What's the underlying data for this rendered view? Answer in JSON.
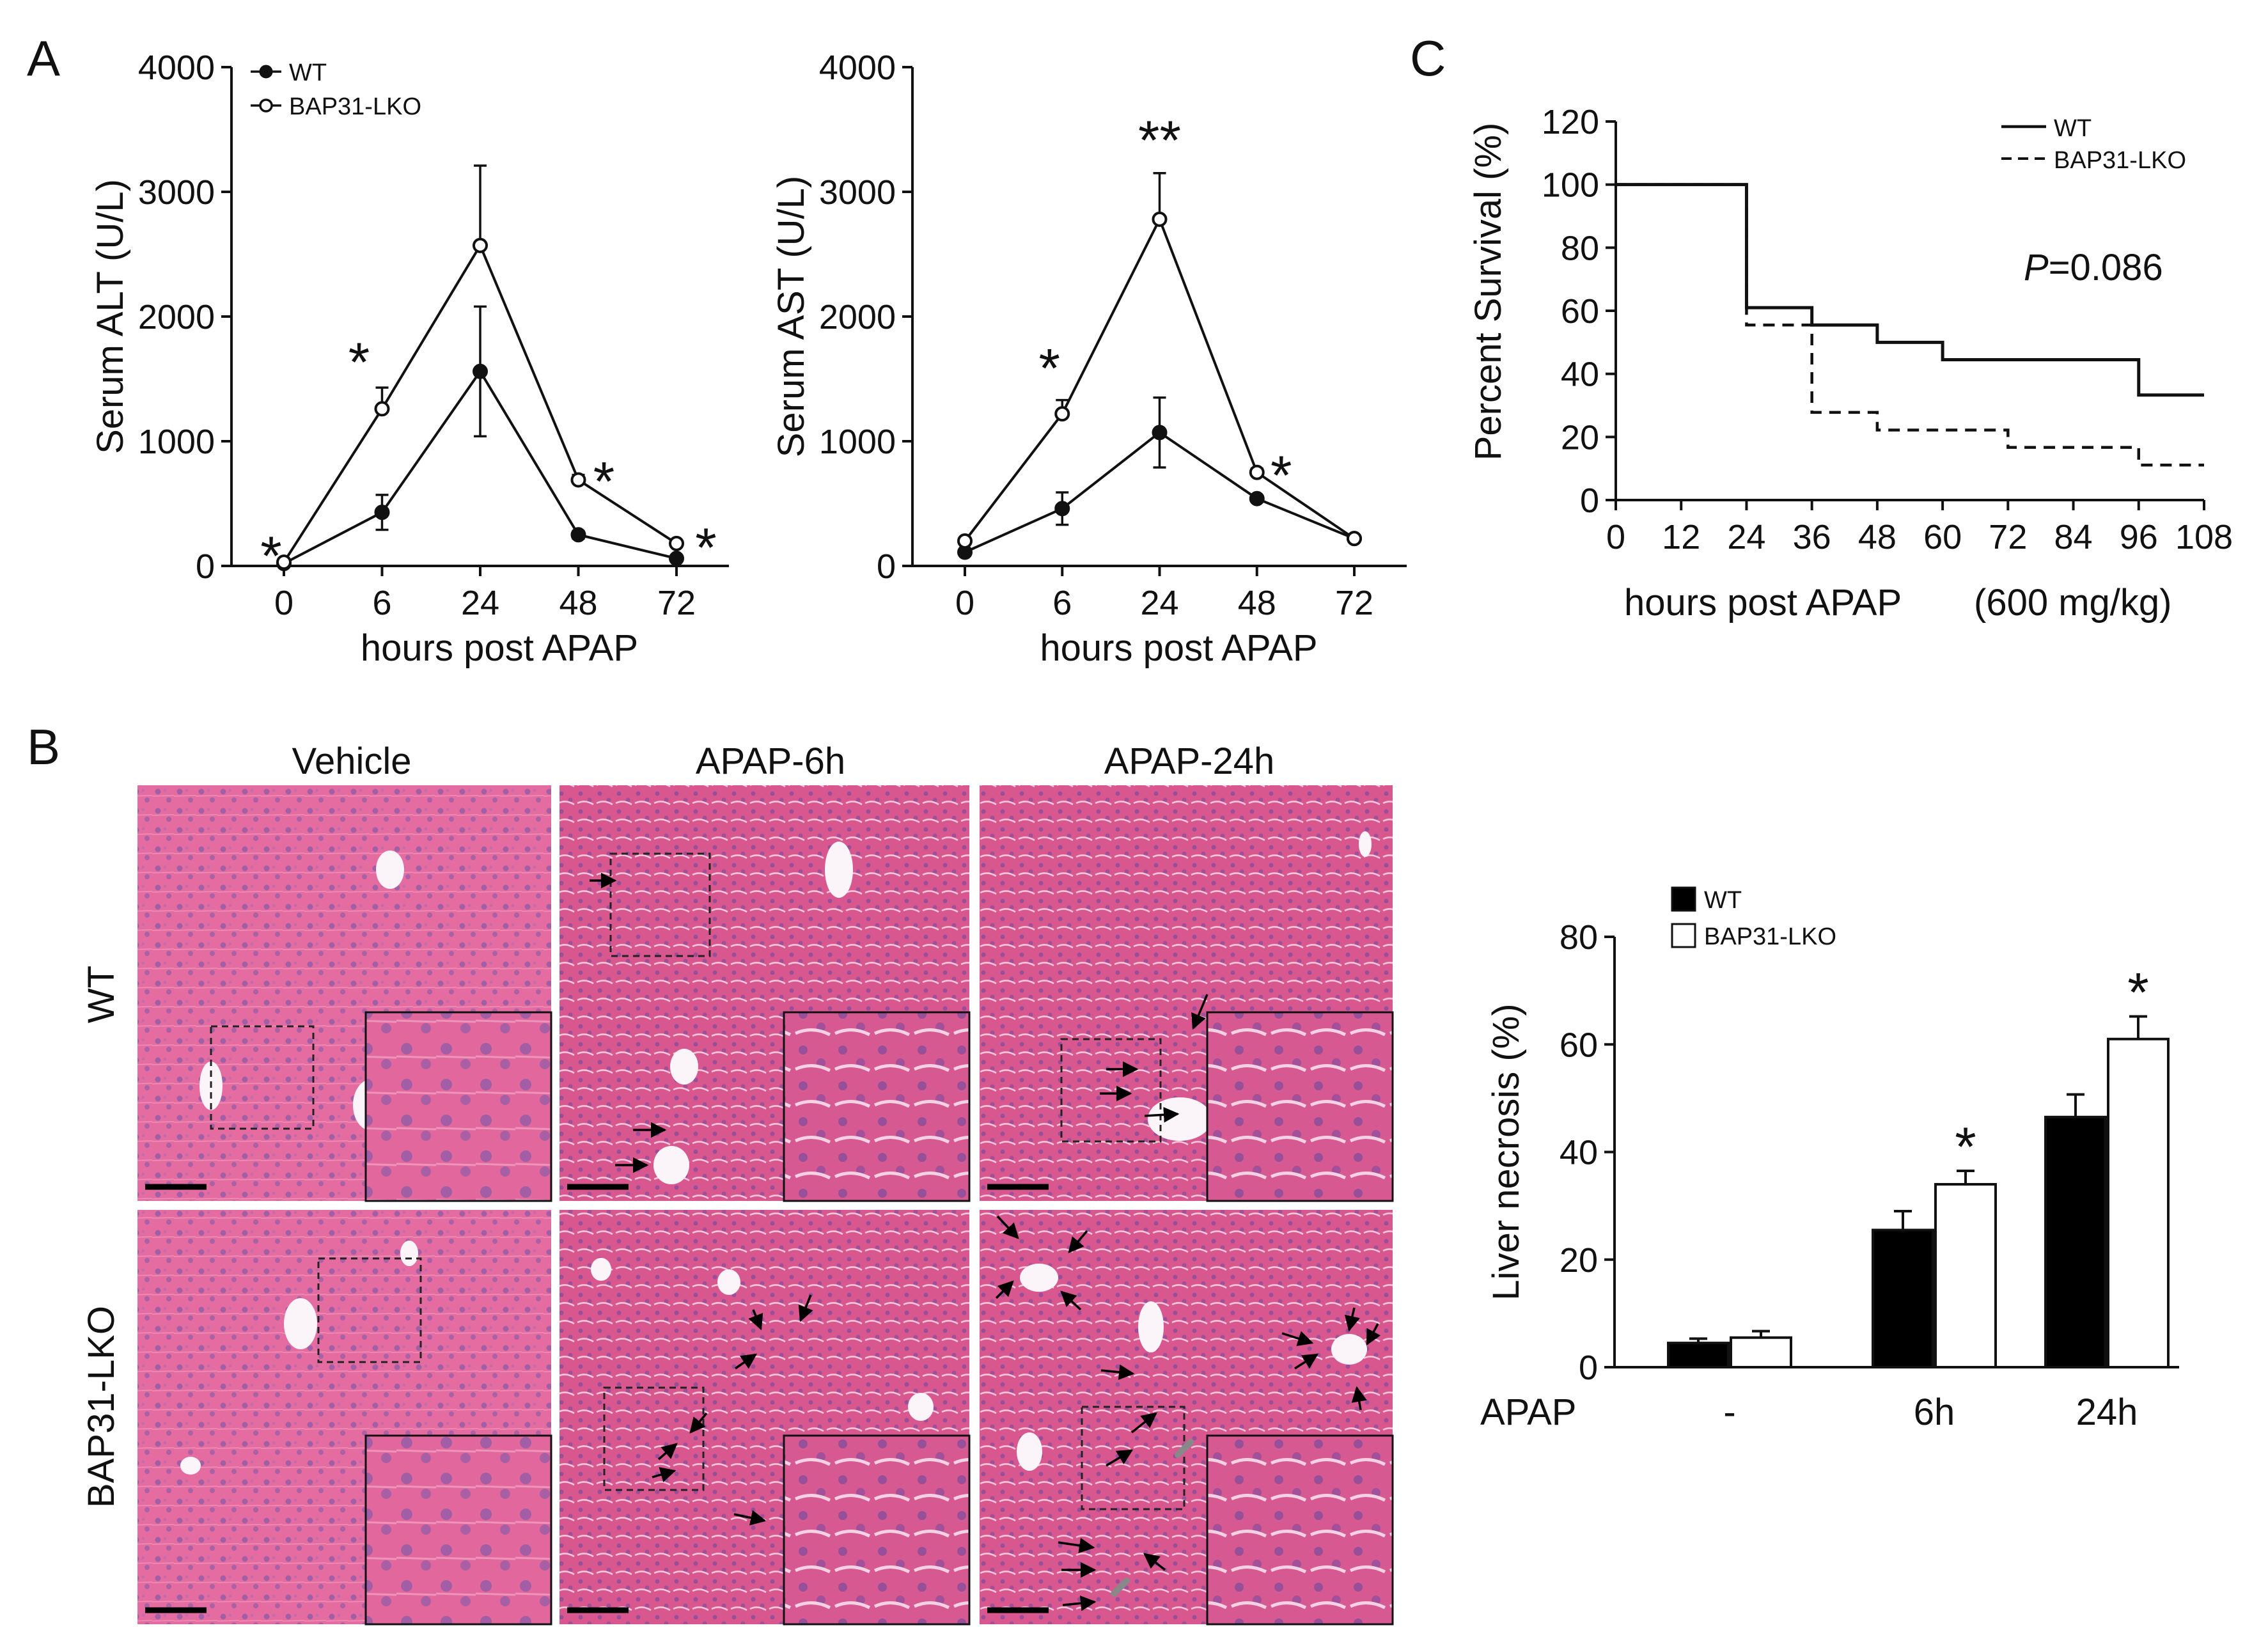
{
  "panels": {
    "A": "A",
    "B": "B",
    "C": "C"
  },
  "legend": {
    "wt": "WT",
    "ko": "BAP31-LKO"
  },
  "alt_chart": {
    "type": "line",
    "categories": [
      "0",
      "6",
      "24",
      "48",
      "72"
    ],
    "ylabel": "Serum ALT (U/L)",
    "xlabel": "hours post APAP",
    "ylim": [
      0,
      4000
    ],
    "yticks": [
      "0",
      "1000",
      "2000",
      "3000",
      "4000"
    ],
    "series": [
      {
        "name": "WT",
        "values": [
          20,
          430,
          1560,
          250,
          60
        ],
        "err": [
          0,
          140,
          520,
          30,
          20
        ]
      },
      {
        "name": "BAP31-LKO",
        "values": [
          30,
          1260,
          2570,
          690,
          180
        ],
        "err": [
          0,
          170,
          640,
          40,
          20
        ]
      }
    ],
    "stars": [
      "*",
      "*",
      "",
      "*",
      "*"
    ]
  },
  "ast_chart": {
    "type": "line",
    "categories": [
      "0",
      "6",
      "24",
      "48",
      "72"
    ],
    "ylabel": "Serum AST (U/L)",
    "xlabel": "hours post APAP",
    "ylim": [
      0,
      4000
    ],
    "yticks": [
      "0",
      "1000",
      "2000",
      "3000",
      "4000"
    ],
    "series": [
      {
        "name": "WT",
        "values": [
          110,
          460,
          1070,
          540,
          220
        ],
        "err": [
          0,
          130,
          280,
          20,
          20
        ]
      },
      {
        "name": "BAP31-LKO",
        "values": [
          200,
          1220,
          2780,
          750,
          220
        ],
        "err": [
          0,
          110,
          370,
          30,
          20
        ]
      }
    ],
    "stars": [
      "",
      "*",
      "**",
      "*",
      ""
    ]
  },
  "survival_chart": {
    "type": "line",
    "ylabel": "Percent Survival (%)",
    "xlabel": "hours post APAP",
    "xlabel_suffix": "(600 mg/kg)",
    "ylim": [
      0,
      120
    ],
    "xlim": [
      0,
      108
    ],
    "yticks": [
      "0",
      "20",
      "40",
      "60",
      "80",
      "100",
      "120"
    ],
    "xticks": [
      "0",
      "12",
      "24",
      "36",
      "48",
      "60",
      "72",
      "84",
      "96",
      "108"
    ],
    "pvalue_label": "P",
    "pvalue": "=0.086",
    "series": [
      {
        "name": "WT",
        "steps": [
          [
            0,
            100
          ],
          [
            24,
            61
          ],
          [
            36,
            55.5
          ],
          [
            48,
            50
          ],
          [
            60,
            44.5
          ],
          [
            96,
            33.3
          ],
          [
            108,
            33.3
          ]
        ]
      },
      {
        "name": "BAP31-LKO",
        "steps": [
          [
            0,
            100
          ],
          [
            24,
            55.5
          ],
          [
            36,
            27.8
          ],
          [
            48,
            22.2
          ],
          [
            72,
            16.7
          ],
          [
            96,
            11.1
          ],
          [
            108,
            11.1
          ]
        ]
      }
    ]
  },
  "histology": {
    "columns": [
      "Vehicle",
      "APAP-6h",
      "APAP-24h"
    ],
    "rows": [
      "WT",
      "BAP31-LKO"
    ],
    "colors": {
      "tissue_base": "#e0659a",
      "tissue_dark": "#c9487f",
      "nucleus": "#8a5aa8",
      "lumen": "#fbf4f8"
    }
  },
  "necrosis_chart": {
    "type": "bar",
    "categories": [
      "-",
      "6h",
      "24h"
    ],
    "category_axis_label": "APAP",
    "ylabel": "Liver necrosis (%)",
    "ylim": [
      0,
      80
    ],
    "yticks": [
      "0",
      "20",
      "40",
      "60",
      "80"
    ],
    "series": [
      {
        "name": "WT",
        "values": [
          4.5,
          25.5,
          46.5
        ],
        "err": [
          0.8,
          3.5,
          4.2
        ],
        "color": "#000000"
      },
      {
        "name": "BAP31-LKO",
        "values": [
          5.5,
          34,
          61
        ],
        "err": [
          1.2,
          2.5,
          4.2
        ],
        "color": "#ffffff"
      }
    ],
    "stars": [
      "",
      "*",
      "*"
    ]
  }
}
